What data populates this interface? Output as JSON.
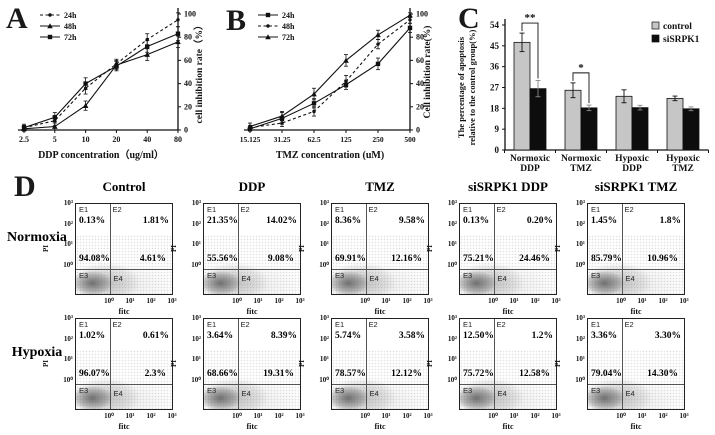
{
  "figure": {
    "panel_labels": {
      "a": "A",
      "b": "B",
      "c": "C",
      "d": "D"
    }
  },
  "chart_data": [
    {
      "id": "A",
      "type": "line",
      "title": "",
      "xlabel": "DDP concentration（ug/ml）",
      "ylabel": "cell inhibition rate（%）",
      "categories": [
        "2.5",
        "5",
        "10",
        "20",
        "40",
        "80"
      ],
      "ylim": [
        0,
        100
      ],
      "yticks": [
        0,
        20,
        40,
        60,
        80,
        100
      ],
      "y_axis_side": "right",
      "legend_position": "top-left",
      "series": [
        {
          "name": "24h",
          "dash": true,
          "marker": "dot",
          "values": [
            2,
            8,
            36,
            57,
            78,
            95
          ],
          "err": [
            3,
            4,
            5,
            4,
            5,
            6
          ]
        },
        {
          "name": "48h",
          "dash": false,
          "marker": "triangle",
          "values": [
            1,
            3,
            21,
            56,
            65,
            76
          ],
          "err": [
            2,
            3,
            4,
            4,
            5,
            5
          ]
        },
        {
          "name": "72h",
          "dash": false,
          "marker": "square",
          "values": [
            2,
            11,
            40,
            55,
            72,
            83
          ],
          "err": [
            2,
            4,
            5,
            4,
            5,
            6
          ]
        }
      ]
    },
    {
      "id": "B",
      "type": "line",
      "title": "",
      "xlabel": "TMZ concentration (uM)",
      "ylabel": "Cell inhibition rate(%)",
      "categories": [
        "15.125",
        "31.25",
        "62.5",
        "125",
        "250",
        "500"
      ],
      "ylim": [
        0,
        100
      ],
      "yticks": [
        0,
        20,
        40,
        60,
        80,
        100
      ],
      "y_axis_side": "right",
      "legend_position": "top-left",
      "series": [
        {
          "name": "24h",
          "dash": false,
          "marker": "square",
          "values": [
            1,
            10,
            23,
            39,
            57,
            88
          ],
          "err": [
            2,
            5,
            4,
            4,
            5,
            4
          ]
        },
        {
          "name": "48h",
          "dash": true,
          "marker": "dot",
          "values": [
            2,
            6,
            16,
            42,
            74,
            95
          ],
          "err": [
            2,
            3,
            4,
            5,
            4,
            3
          ]
        },
        {
          "name": "72h",
          "dash": false,
          "marker": "triangle",
          "values": [
            3,
            12,
            31,
            60,
            82,
            99
          ],
          "err": [
            3,
            4,
            5,
            5,
            4,
            2
          ]
        }
      ]
    },
    {
      "id": "C",
      "type": "bar",
      "title": "",
      "ylabel_line1": "The percentage of apoptosis",
      "ylabel_line2": "relative to the control group(%)",
      "categories": [
        [
          "Normoxic",
          "DDP"
        ],
        [
          "Normoxic",
          "TMZ"
        ],
        [
          "Hypoxic",
          "DDP"
        ],
        [
          "Hypoxic",
          "TMZ"
        ]
      ],
      "ylim": [
        0,
        54
      ],
      "yticks": [
        0,
        9,
        18,
        27,
        36,
        45,
        54
      ],
      "legend_position": "top-right",
      "series": [
        {
          "name": "control",
          "color": "#c6c6c6",
          "values": [
            46.5,
            25.8,
            23.2,
            22.3
          ],
          "err": [
            4.0,
            3.2,
            2.8,
            1.0
          ]
        },
        {
          "name": "siSRPK1",
          "color": "#0d0d0d",
          "values": [
            26.5,
            18.2,
            18.3,
            17.8
          ],
          "err": [
            3.5,
            1.2,
            1.0,
            0.8
          ]
        }
      ],
      "significance": [
        {
          "group": 0,
          "label": "**"
        },
        {
          "group": 1,
          "label": "*"
        }
      ]
    },
    {
      "id": "D",
      "type": "flow_cytometry_quadrants",
      "columns": [
        "Control",
        "DDP",
        "TMZ",
        "siSRPK1 DDP",
        "siSRPK1 TMZ"
      ],
      "rows": [
        "Normoxia",
        "Hypoxia"
      ],
      "xlabel": "fitc",
      "ylabel": "PI",
      "x_ticks": [
        "10⁰",
        "10¹",
        "10²",
        "10³"
      ],
      "y_ticks": [
        "10³",
        "10²",
        "10¹",
        "10⁰"
      ],
      "quadrant_labels": [
        "E1",
        "E2",
        "E3",
        "E4"
      ],
      "plots": [
        [
          {
            "E1": "0.13%",
            "E2": "1.81%",
            "E3": "94.08%",
            "E4": "4.61%"
          },
          {
            "E1": "21.35%",
            "E2": "14.02%",
            "E3": "55.56%",
            "E4": "9.08%"
          },
          {
            "E1": "8.36%",
            "E2": "9.58%",
            "E3": "69.91%",
            "E4": "12.16%"
          },
          {
            "E1": "0.13%",
            "E2": "0.20%",
            "E3": "75.21%",
            "E4": "24.46%"
          },
          {
            "E1": "1.45%",
            "E2": "1.8%",
            "E3": "85.79%",
            "E4": "10.96%"
          }
        ],
        [
          {
            "E1": "1.02%",
            "E2": "0.61%",
            "E3": "96.07%",
            "E4": "2.3%"
          },
          {
            "E1": "3.64%",
            "E2": "8.39%",
            "E3": "68.66%",
            "E4": "19.31%"
          },
          {
            "E1": "5.74%",
            "E2": "3.58%",
            "E3": "78.57%",
            "E4": "12.12%"
          },
          {
            "E1": "12.50%",
            "E2": "1.2%",
            "E3": "75.72%",
            "E4": "12.58%"
          },
          {
            "E1": "3.36%",
            "E2": "3.30%",
            "E3": "79.04%",
            "E4": "14.30%"
          }
        ]
      ]
    }
  ]
}
